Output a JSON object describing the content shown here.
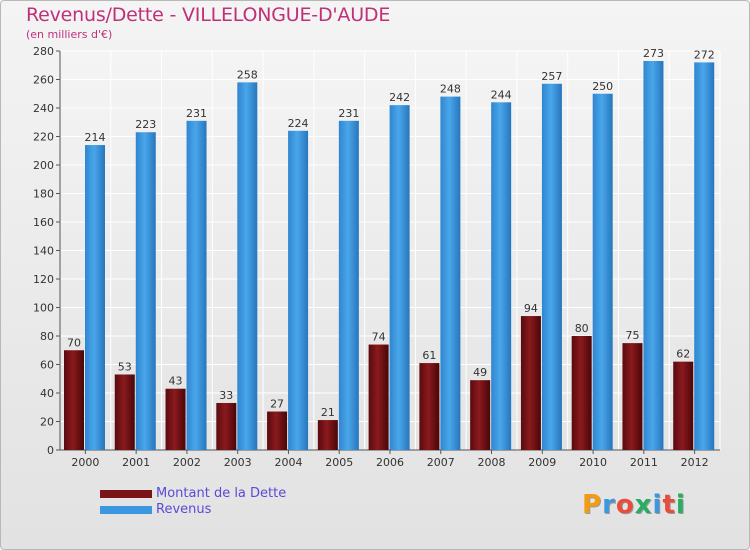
{
  "title": "Revenus/Dette - VILLELONGUE-D'AUDE",
  "subtitle": "(en milliers d'€)",
  "colors": {
    "title": "#c0307a",
    "dette": "#7a1418",
    "revenus": "#3b97e0",
    "legend_text": "#5a4ad6"
  },
  "chart_data": {
    "type": "bar",
    "title": "Revenus/Dette - VILLELONGUE-D'AUDE",
    "ylabel": "(en milliers d'€)",
    "xlabel": "",
    "categories": [
      "2000",
      "2001",
      "2002",
      "2003",
      "2004",
      "2005",
      "2006",
      "2007",
      "2008",
      "2009",
      "2010",
      "2011",
      "2012"
    ],
    "series": [
      {
        "name": "Montant de la Dette",
        "values": [
          70,
          53,
          43,
          33,
          27,
          21,
          74,
          61,
          49,
          94,
          80,
          75,
          62
        ]
      },
      {
        "name": "Revenus",
        "values": [
          214,
          223,
          231,
          258,
          224,
          231,
          242,
          248,
          244,
          257,
          250,
          273,
          272
        ]
      }
    ],
    "ylim": [
      0,
      280
    ],
    "yticks": [
      "0",
      "20",
      "40",
      "60",
      "80",
      "100",
      "120",
      "140",
      "160",
      "180",
      "200",
      "220",
      "240",
      "260",
      "280"
    ],
    "grid": true,
    "legend_position": "bottom-left"
  },
  "legend": [
    {
      "label": "Montant de la Dette"
    },
    {
      "label": "Revenus"
    }
  ],
  "logo": {
    "letters": [
      "P",
      "r",
      "o",
      "x",
      "i",
      "t",
      "i"
    ],
    "colors": [
      "#f39c12",
      "#3b97e0",
      "#e74c3c",
      "#27ae60",
      "#3b97e0",
      "#e74c3c",
      "#27ae60"
    ]
  }
}
